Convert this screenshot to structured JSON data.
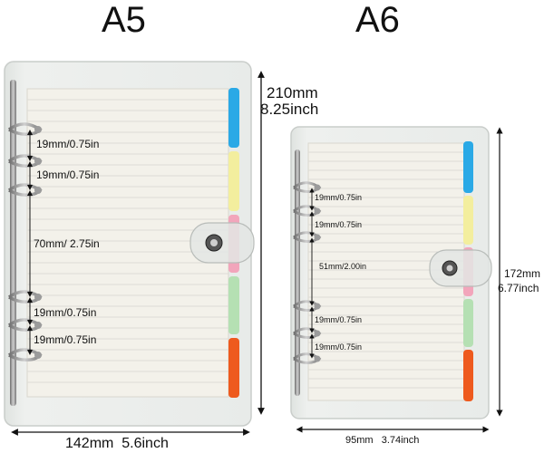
{
  "a5": {
    "title": "A5",
    "height_mm": "210mm",
    "height_in": "8.25inch",
    "width_label": "142mm  5.6inch",
    "ring_spacings": [
      "19mm/0.75in",
      "19mm/0.75in",
      "70mm/ 2.75in",
      "19mm/0.75in",
      "19mm/0.75in"
    ]
  },
  "a6": {
    "title": "A6",
    "height_mm": "172mm",
    "height_in": "6.77inch",
    "width_label": "95mm   3.74inch",
    "ring_spacings": [
      "19mm/0.75in",
      "19mm/0.75in",
      "51mm/2.00in",
      "19mm/0.75in",
      "19mm/0.75in"
    ]
  },
  "colors": {
    "tab_blue": "#2aa9e6",
    "tab_yellow": "#f3ee9e",
    "tab_pink": "#f2a5bb",
    "tab_green": "#b5e0b3",
    "tab_orange": "#ee5a1e",
    "paper": "#f3f1ea",
    "ruled_line": "#dcdcd6",
    "cover": "#e9ece9",
    "ring_metal": "#8c8c8c"
  }
}
